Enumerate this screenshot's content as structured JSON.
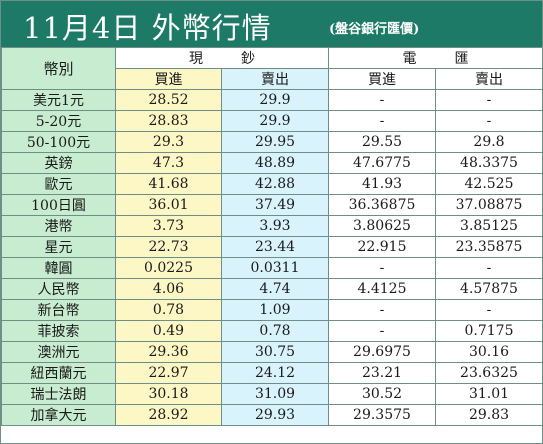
{
  "header": {
    "title": "11月4日 外幣行情",
    "source": "(盤谷銀行匯價)"
  },
  "table": {
    "corner_label": "幣別",
    "groups": [
      "現鈔",
      "電匯"
    ],
    "subheaders": [
      "買進",
      "賣出",
      "買進",
      "賣出"
    ],
    "rows": [
      {
        "name": "美元1元",
        "cash_buy": "28.52",
        "cash_sell": "29.9",
        "wire_buy": "-",
        "wire_sell": "-"
      },
      {
        "name": "5-20元",
        "cash_buy": "28.83",
        "cash_sell": "29.9",
        "wire_buy": "-",
        "wire_sell": "-"
      },
      {
        "name": "50-100元",
        "cash_buy": "29.3",
        "cash_sell": "29.95",
        "wire_buy": "29.55",
        "wire_sell": "29.8"
      },
      {
        "name": "英鎊",
        "cash_buy": "47.3",
        "cash_sell": "48.89",
        "wire_buy": "47.6775",
        "wire_sell": "48.3375"
      },
      {
        "name": "歐元",
        "cash_buy": "41.68",
        "cash_sell": "42.88",
        "wire_buy": "41.93",
        "wire_sell": "42.525"
      },
      {
        "name": "100日圓",
        "cash_buy": "36.01",
        "cash_sell": "37.49",
        "wire_buy": "36.36875",
        "wire_sell": "37.08875"
      },
      {
        "name": "港幣",
        "cash_buy": "3.73",
        "cash_sell": "3.93",
        "wire_buy": "3.80625",
        "wire_sell": "3.85125"
      },
      {
        "name": "星元",
        "cash_buy": "22.73",
        "cash_sell": "23.44",
        "wire_buy": "22.915",
        "wire_sell": "23.35875"
      },
      {
        "name": "韓圓",
        "cash_buy": "0.0225",
        "cash_sell": "0.0311",
        "wire_buy": "-",
        "wire_sell": "-"
      },
      {
        "name": "人民幣",
        "cash_buy": "4.06",
        "cash_sell": "4.74",
        "wire_buy": "4.4125",
        "wire_sell": "4.57875"
      },
      {
        "name": "新台幣",
        "cash_buy": "0.78",
        "cash_sell": "1.09",
        "wire_buy": "-",
        "wire_sell": "-"
      },
      {
        "name": "菲披索",
        "cash_buy": "0.49",
        "cash_sell": "0.78",
        "wire_buy": "-",
        "wire_sell": "0.7175"
      },
      {
        "name": "澳洲元",
        "cash_buy": "29.36",
        "cash_sell": "30.75",
        "wire_buy": "29.6975",
        "wire_sell": "30.16"
      },
      {
        "name": "紐西蘭元",
        "cash_buy": "22.97",
        "cash_sell": "24.12",
        "wire_buy": "23.21",
        "wire_sell": "23.6325"
      },
      {
        "name": "瑞士法朗",
        "cash_buy": "30.18",
        "cash_sell": "31.09",
        "wire_buy": "30.52",
        "wire_sell": "31.01"
      },
      {
        "name": "加拿大元",
        "cash_buy": "28.92",
        "cash_sell": "29.93",
        "wire_buy": "29.3575",
        "wire_sell": "29.83"
      }
    ]
  },
  "colors": {
    "banner": "#1c7a67",
    "name_column": "#c7ecd0",
    "cash_buy_column": "#fcf7c4",
    "cash_sell_column": "#d8f3fb",
    "grid": "#6d8f86"
  }
}
